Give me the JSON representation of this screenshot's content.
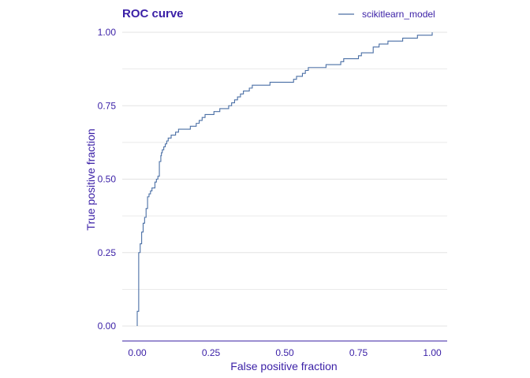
{
  "colors": {
    "text": "#3a1fa6",
    "line": "#4a6fa5",
    "grid": "#e3e3e3",
    "axis": "#371ea3"
  },
  "chart_data": {
    "type": "line",
    "title": "ROC curve",
    "xlabel": "False positive fraction",
    "ylabel": "True positive fraction",
    "xlim": [
      0,
      1
    ],
    "ylim": [
      0,
      1
    ],
    "xticks": [
      0.0,
      0.25,
      0.5,
      0.75,
      1.0
    ],
    "xtick_labels": [
      "0.00",
      "0.25",
      "0.50",
      "0.75",
      "1.00"
    ],
    "yticks": [
      0.0,
      0.25,
      0.5,
      0.75,
      1.0
    ],
    "ytick_labels": [
      "0.00",
      "0.25",
      "0.50",
      "0.75",
      "1.00"
    ],
    "grid": true,
    "legend_position": "top-right",
    "series": [
      {
        "name": "scikitlearn_model",
        "x": [
          0.0,
          0.0,
          0.005,
          0.005,
          0.01,
          0.01,
          0.015,
          0.02,
          0.025,
          0.03,
          0.035,
          0.04,
          0.045,
          0.05,
          0.055,
          0.06,
          0.065,
          0.07,
          0.075,
          0.08,
          0.082,
          0.085,
          0.09,
          0.095,
          0.1,
          0.105,
          0.11,
          0.115,
          0.125,
          0.13,
          0.14,
          0.15,
          0.16,
          0.18,
          0.2,
          0.21,
          0.22,
          0.23,
          0.25,
          0.26,
          0.28,
          0.3,
          0.31,
          0.32,
          0.33,
          0.34,
          0.35,
          0.36,
          0.37,
          0.38,
          0.39,
          0.42,
          0.45,
          0.5,
          0.52,
          0.53,
          0.54,
          0.56,
          0.57,
          0.58,
          0.6,
          0.62,
          0.64,
          0.69,
          0.7,
          0.75,
          0.76,
          0.78,
          0.8,
          0.82,
          0.85,
          0.88,
          0.9,
          0.92,
          0.95,
          0.98,
          0.99,
          1.0
        ],
        "y": [
          0.0,
          0.05,
          0.15,
          0.25,
          0.26,
          0.28,
          0.32,
          0.35,
          0.37,
          0.4,
          0.44,
          0.45,
          0.46,
          0.47,
          0.47,
          0.49,
          0.5,
          0.51,
          0.56,
          0.58,
          0.59,
          0.6,
          0.61,
          0.62,
          0.63,
          0.64,
          0.64,
          0.65,
          0.65,
          0.66,
          0.67,
          0.67,
          0.67,
          0.68,
          0.69,
          0.7,
          0.71,
          0.72,
          0.72,
          0.73,
          0.74,
          0.74,
          0.75,
          0.76,
          0.77,
          0.78,
          0.79,
          0.8,
          0.8,
          0.81,
          0.82,
          0.82,
          0.83,
          0.83,
          0.83,
          0.84,
          0.85,
          0.86,
          0.87,
          0.88,
          0.88,
          0.88,
          0.89,
          0.9,
          0.91,
          0.92,
          0.93,
          0.93,
          0.95,
          0.96,
          0.97,
          0.97,
          0.98,
          0.98,
          0.99,
          0.99,
          0.99,
          1.0
        ]
      }
    ]
  }
}
